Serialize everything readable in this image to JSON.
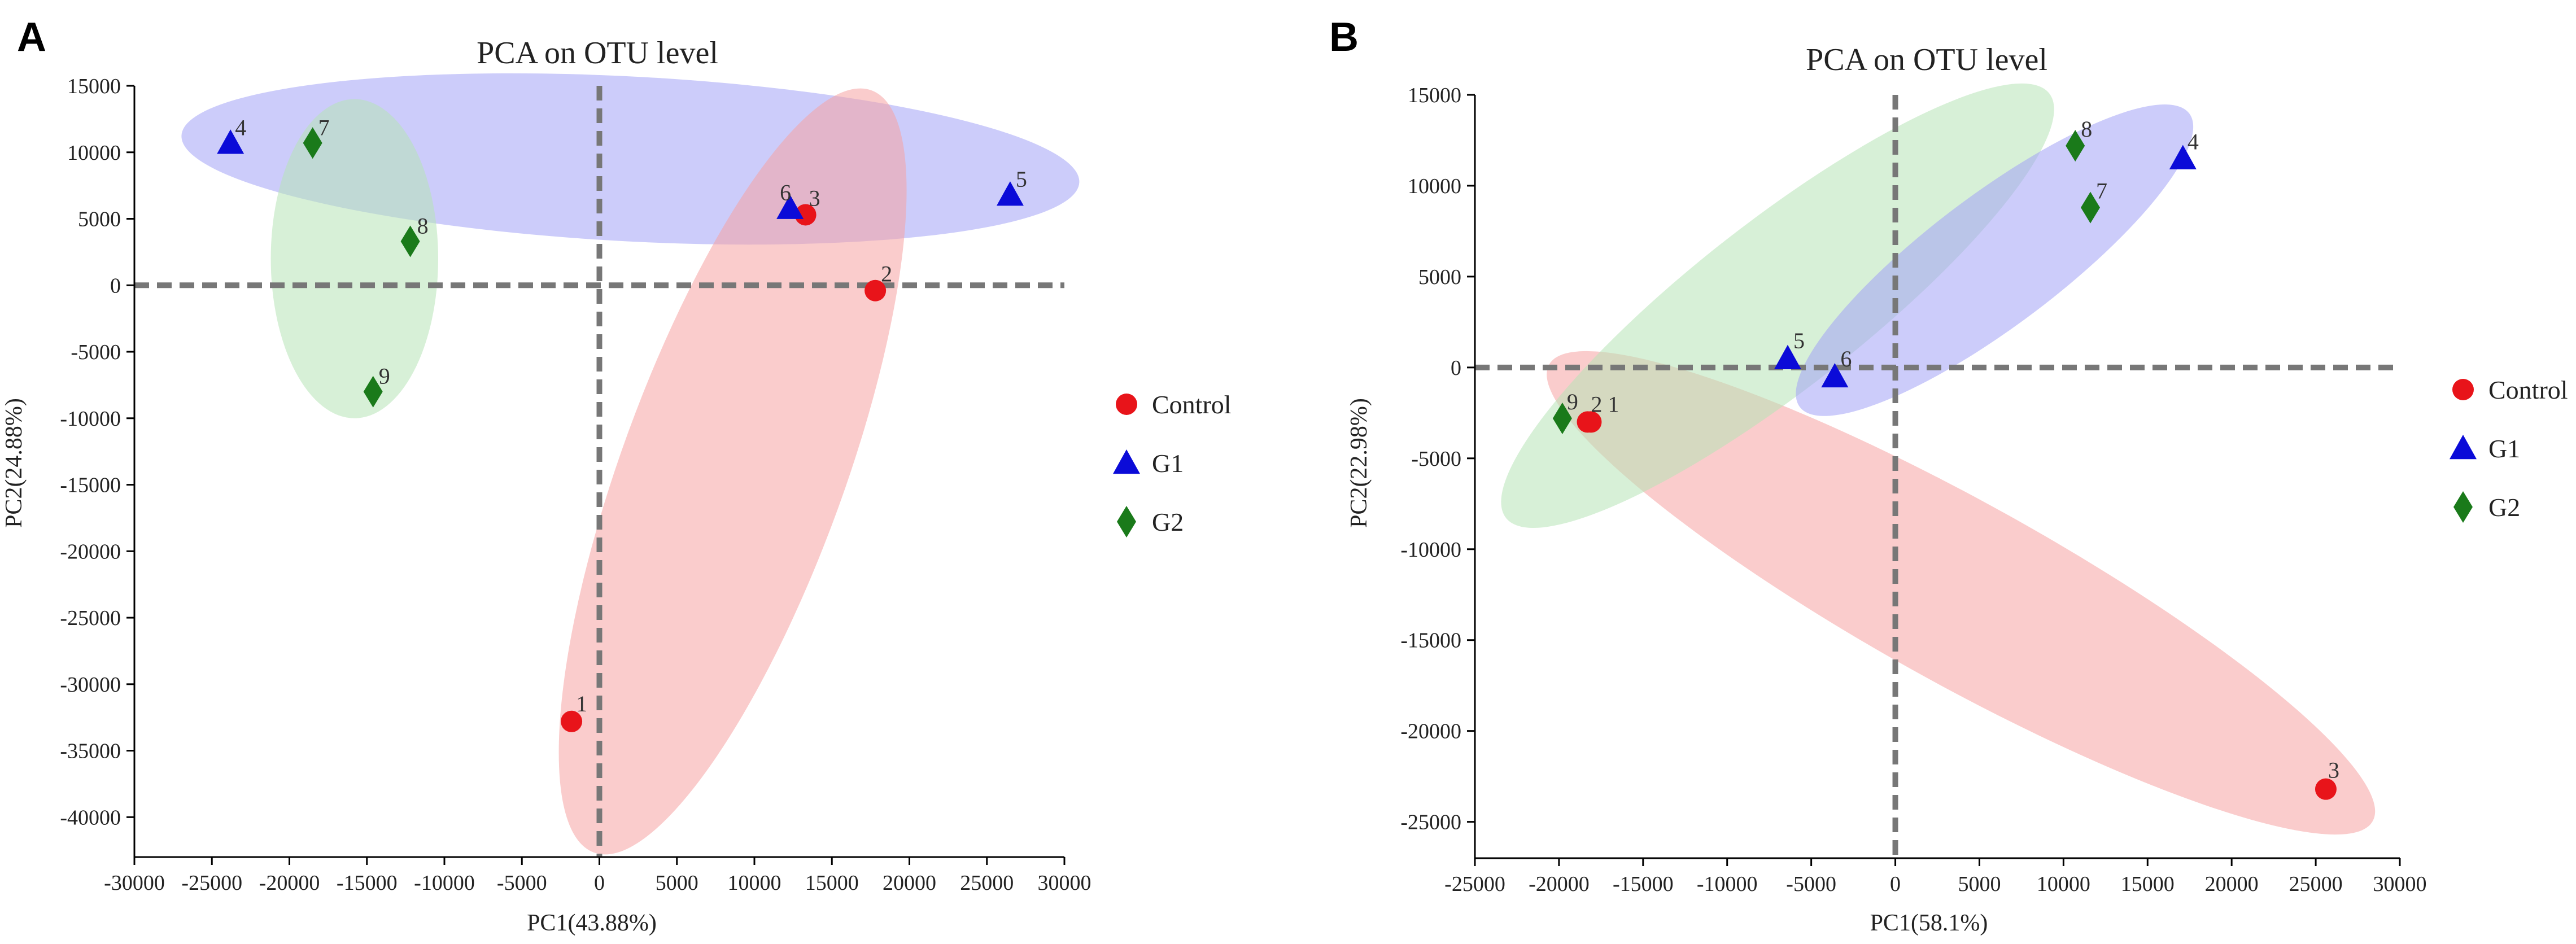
{
  "colors": {
    "control": "#e8141a",
    "g1": "#0b0bd8",
    "g2": "#1a7a1a",
    "control_ellipse": "#f6a3a3",
    "g1_ellipse": "#a3a3f6",
    "g2_ellipse": "#b6e3b6",
    "axis": "#000000",
    "zero_line": "#777777"
  },
  "chart_data": [
    {
      "panel": "A",
      "type": "scatter",
      "title": "PCA on OTU level",
      "xlabel": "PC1(43.88%)",
      "ylabel": "PC2(24.88%)",
      "xlim": [
        -30000,
        30000
      ],
      "ylim": [
        -43000,
        15000
      ],
      "xticks": [
        -30000,
        -25000,
        -20000,
        -15000,
        -10000,
        -5000,
        0,
        5000,
        10000,
        15000,
        20000,
        25000,
        30000
      ],
      "yticks": [
        15000,
        10000,
        5000,
        0,
        -5000,
        -10000,
        -15000,
        -20000,
        -25000,
        -30000,
        -35000,
        -40000
      ],
      "series": [
        {
          "name": "Control",
          "marker": "circle",
          "points": [
            {
              "label": "1",
              "x": -1800,
              "y": -32800
            },
            {
              "label": "2",
              "x": 17800,
              "y": -400
            },
            {
              "label": "3",
              "x": 13300,
              "y": 5300
            }
          ]
        },
        {
          "name": "G1",
          "marker": "triangle",
          "points": [
            {
              "label": "4",
              "x": -23800,
              "y": 10700
            },
            {
              "label": "5",
              "x": 26500,
              "y": 6800
            },
            {
              "label": "6",
              "x": 12300,
              "y": 5800
            }
          ]
        },
        {
          "name": "G2",
          "marker": "diamond",
          "points": [
            {
              "label": "7",
              "x": -18500,
              "y": 10700
            },
            {
              "label": "8",
              "x": -12200,
              "y": 3300
            },
            {
              "label": "9",
              "x": -14600,
              "y": -8000
            }
          ]
        }
      ],
      "ellipses": [
        {
          "group": "G1",
          "cx": 2000,
          "cy": 9500,
          "rx": 29000,
          "ry": 6200,
          "angle": -3
        },
        {
          "group": "G2",
          "cx": -15800,
          "cy": 2000,
          "rx": 5400,
          "ry": 12000,
          "angle": 0
        },
        {
          "group": "Control",
          "cx": 8600,
          "cy": -14000,
          "rx": 7200,
          "ry": 30500,
          "angle": 0,
          "tilt_deg": 20
        }
      ],
      "legend": [
        "Control",
        "G1",
        "G2"
      ]
    },
    {
      "panel": "B",
      "type": "scatter",
      "title": "PCA on OTU level",
      "xlabel": "PC1(58.1%)",
      "ylabel": "PC2(22.98%)",
      "xlim": [
        -25000,
        30000
      ],
      "ylim": [
        -27000,
        15000
      ],
      "xticks": [
        -25000,
        -20000,
        -15000,
        -10000,
        -5000,
        0,
        5000,
        10000,
        15000,
        20000,
        25000,
        30000
      ],
      "yticks": [
        15000,
        10000,
        5000,
        0,
        -5000,
        -10000,
        -15000,
        -20000,
        -25000
      ],
      "series": [
        {
          "name": "Control",
          "marker": "circle",
          "points": [
            {
              "label": "1",
              "x": -18100,
              "y": -3000
            },
            {
              "label": "2",
              "x": -18300,
              "y": -3000
            },
            {
              "label": "3",
              "x": 25600,
              "y": -23200
            }
          ]
        },
        {
          "name": "G1",
          "marker": "triangle",
          "points": [
            {
              "label": "4",
              "x": 17100,
              "y": 11500
            },
            {
              "label": "5",
              "x": -6400,
              "y": 500
            },
            {
              "label": "6",
              "x": -3600,
              "y": -500
            }
          ]
        },
        {
          "name": "G2",
          "marker": "diamond",
          "points": [
            {
              "label": "7",
              "x": 11600,
              "y": 8800
            },
            {
              "label": "8",
              "x": 10700,
              "y": 12200
            },
            {
              "label": "9",
              "x": -19800,
              "y": -2800
            }
          ]
        }
      ],
      "ellipses": [
        {
          "group": "Control",
          "cx": 3900,
          "cy": -12400,
          "rx": 28000,
          "ry": 5000,
          "angle": -29
        },
        {
          "group": "G2",
          "cx": -7000,
          "cy": 3400,
          "rx": 20500,
          "ry": 4600,
          "angle": 38
        },
        {
          "group": "G1",
          "cx": 5900,
          "cy": 5900,
          "rx": 14500,
          "ry": 3600,
          "angle": 37
        }
      ],
      "legend": [
        "Control",
        "G1",
        "G2"
      ]
    }
  ]
}
